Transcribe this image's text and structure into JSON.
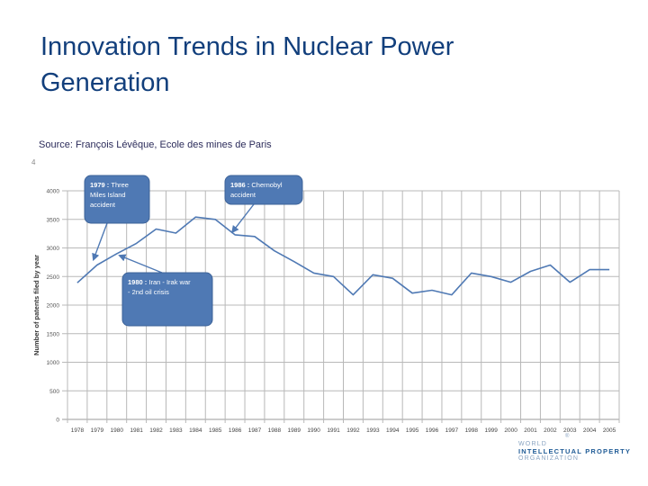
{
  "slide": {
    "title": "Innovation Trends in Nuclear Power Generation",
    "source": "Source:  François Lévêque, Ecole des mines de Paris",
    "stray_mark": "4",
    "logo": {
      "line1": "WORLD",
      "line2": "INTELLECTUAL PROPERTY",
      "line3": "ORGANIZATION",
      "mark": "®"
    }
  },
  "colors": {
    "title": "#123f7c",
    "line": "#4f79b4",
    "callout_fill": "#4f79b4",
    "callout_stroke": "#3d6399",
    "grid": "#b8b8b8"
  },
  "chart_data": {
    "type": "line",
    "title": "",
    "xlabel": "",
    "ylabel": "Number of patents filed by year",
    "ylim": [
      0,
      4000
    ],
    "yticks": [
      0,
      500,
      1000,
      1500,
      2000,
      2500,
      3000,
      3500,
      4000
    ],
    "ytick_labels": [
      "0",
      "500",
      "1000",
      "1500",
      "2000",
      "2500",
      "3000",
      "3500",
      "4000"
    ],
    "grid": true,
    "legend": "none",
    "categories": [
      "1978",
      "1979",
      "1980",
      "1981",
      "1982",
      "1983",
      "1984",
      "1985",
      "1986",
      "1987",
      "1988",
      "1989",
      "1990",
      "1991",
      "1992",
      "1993",
      "1994",
      "1995",
      "1996",
      "1997",
      "1998",
      "1999",
      "2000",
      "2001",
      "2002",
      "2003",
      "2004",
      "2005"
    ],
    "series": [
      {
        "name": "Patents filed",
        "values": [
          2390,
          2700,
          2900,
          3080,
          3330,
          3260,
          3540,
          3500,
          3230,
          3200,
          2950,
          2760,
          2560,
          2500,
          2180,
          2530,
          2470,
          2210,
          2260,
          2180,
          2560,
          2500,
          2400,
          2590,
          2700,
          2400,
          2620,
          2620
        ]
      }
    ],
    "annotations": [
      {
        "year": "1979",
        "bold": "1979 :",
        "text": "Three Miles Island accident",
        "lines": [
          "Three",
          "Miles Island",
          "accident"
        ]
      },
      {
        "year": "1980",
        "bold": "1980 :",
        "text": "Iran - Irak war - 2nd oil crisis",
        "lines": [
          "Iran - Irak war",
          "- 2nd oil crisis"
        ]
      },
      {
        "year": "1986",
        "bold": "1986 :",
        "text": "Chernobyl accident",
        "lines": [
          "Chernobyl",
          "accident"
        ]
      }
    ]
  }
}
